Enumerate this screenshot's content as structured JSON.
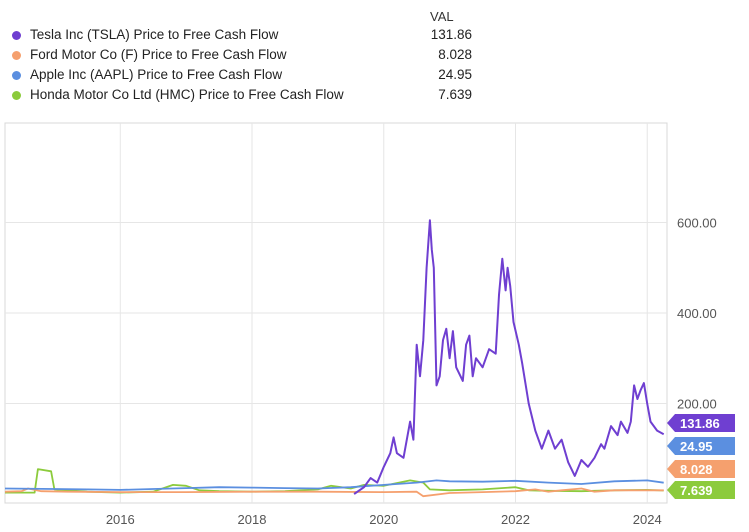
{
  "chart_data": {
    "type": "line",
    "title": "",
    "xlabel": "",
    "ylabel": "",
    "legend_header": "VAL",
    "x_ticks": [
      "2016",
      "2018",
      "2020",
      "2022",
      "2024"
    ],
    "y_ticks": [
      "200.00",
      "400.00",
      "600.00"
    ],
    "xlim": [
      2014.25,
      2024.3
    ],
    "ylim": [
      -20,
      820
    ],
    "grid": true,
    "series": [
      {
        "name": "Tesla Inc (TSLA) Price to Free Cash Flow",
        "value_label": "131.86",
        "color": "#6f3fd1",
        "points": [
          [
            2019.55,
            0
          ],
          [
            2019.7,
            15
          ],
          [
            2019.8,
            35
          ],
          [
            2019.9,
            25
          ],
          [
            2020.0,
            60
          ],
          [
            2020.1,
            90
          ],
          [
            2020.15,
            125
          ],
          [
            2020.2,
            90
          ],
          [
            2020.3,
            80
          ],
          [
            2020.4,
            160
          ],
          [
            2020.45,
            120
          ],
          [
            2020.5,
            330
          ],
          [
            2020.55,
            260
          ],
          [
            2020.6,
            340
          ],
          [
            2020.65,
            500
          ],
          [
            2020.7,
            605
          ],
          [
            2020.73,
            540
          ],
          [
            2020.76,
            500
          ],
          [
            2020.8,
            240
          ],
          [
            2020.85,
            260
          ],
          [
            2020.9,
            340
          ],
          [
            2020.95,
            365
          ],
          [
            2021.0,
            300
          ],
          [
            2021.05,
            360
          ],
          [
            2021.1,
            280
          ],
          [
            2021.2,
            250
          ],
          [
            2021.25,
            330
          ],
          [
            2021.3,
            350
          ],
          [
            2021.35,
            260
          ],
          [
            2021.4,
            300
          ],
          [
            2021.5,
            280
          ],
          [
            2021.6,
            320
          ],
          [
            2021.7,
            310
          ],
          [
            2021.75,
            440
          ],
          [
            2021.8,
            520
          ],
          [
            2021.85,
            450
          ],
          [
            2021.88,
            500
          ],
          [
            2021.92,
            460
          ],
          [
            2021.97,
            380
          ],
          [
            2022.05,
            330
          ],
          [
            2022.1,
            290
          ],
          [
            2022.2,
            200
          ],
          [
            2022.3,
            140
          ],
          [
            2022.4,
            100
          ],
          [
            2022.5,
            140
          ],
          [
            2022.6,
            100
          ],
          [
            2022.7,
            120
          ],
          [
            2022.8,
            70
          ],
          [
            2022.9,
            40
          ],
          [
            2023.0,
            75
          ],
          [
            2023.1,
            60
          ],
          [
            2023.2,
            80
          ],
          [
            2023.3,
            110
          ],
          [
            2023.35,
            100
          ],
          [
            2023.45,
            150
          ],
          [
            2023.55,
            130
          ],
          [
            2023.6,
            160
          ],
          [
            2023.7,
            135
          ],
          [
            2023.75,
            160
          ],
          [
            2023.8,
            240
          ],
          [
            2023.85,
            210
          ],
          [
            2023.9,
            230
          ],
          [
            2023.95,
            245
          ],
          [
            2024.0,
            200
          ],
          [
            2024.05,
            160
          ],
          [
            2024.15,
            140
          ],
          [
            2024.25,
            131.86
          ]
        ]
      },
      {
        "name": "Ford Motor Co (F) Price to Free Cash Flow",
        "value_label": "8.028",
        "color": "#f5a06e",
        "points": [
          [
            2014.25,
            5
          ],
          [
            2014.5,
            6
          ],
          [
            2014.6,
            12
          ],
          [
            2014.8,
            6
          ],
          [
            2015.2,
            5
          ],
          [
            2016.0,
            4
          ],
          [
            2017.0,
            4
          ],
          [
            2018.0,
            5
          ],
          [
            2019.0,
            5
          ],
          [
            2020.0,
            4
          ],
          [
            2020.5,
            5
          ],
          [
            2020.6,
            -5
          ],
          [
            2021.0,
            2
          ],
          [
            2021.5,
            4
          ],
          [
            2022.0,
            6
          ],
          [
            2022.3,
            10
          ],
          [
            2022.5,
            5
          ],
          [
            2022.7,
            8
          ],
          [
            2023.0,
            12
          ],
          [
            2023.2,
            5
          ],
          [
            2023.5,
            8
          ],
          [
            2024.0,
            8
          ],
          [
            2024.25,
            8.028
          ]
        ]
      },
      {
        "name": "Apple Inc (AAPL) Price to Free Cash Flow",
        "value_label": "24.95",
        "color": "#5b8fe0",
        "points": [
          [
            2014.25,
            12
          ],
          [
            2015.0,
            11
          ],
          [
            2015.5,
            10
          ],
          [
            2016.0,
            9
          ],
          [
            2016.5,
            11
          ],
          [
            2017.0,
            13
          ],
          [
            2017.5,
            15
          ],
          [
            2018.0,
            14
          ],
          [
            2018.5,
            13
          ],
          [
            2019.0,
            12
          ],
          [
            2019.5,
            15
          ],
          [
            2020.0,
            20
          ],
          [
            2020.5,
            25
          ],
          [
            2020.8,
            30
          ],
          [
            2021.0,
            28
          ],
          [
            2021.5,
            27
          ],
          [
            2022.0,
            29
          ],
          [
            2022.5,
            25
          ],
          [
            2023.0,
            22
          ],
          [
            2023.5,
            28
          ],
          [
            2024.0,
            30
          ],
          [
            2024.25,
            24.95
          ]
        ]
      },
      {
        "name": "Honda Motor Co Ltd (HMC) Price to Free Cash Flow",
        "value_label": "7.639",
        "color": "#8ccb3c",
        "points": [
          [
            2014.25,
            3
          ],
          [
            2014.7,
            3
          ],
          [
            2014.75,
            55
          ],
          [
            2014.95,
            50
          ],
          [
            2015.0,
            10
          ],
          [
            2015.5,
            5
          ],
          [
            2016.0,
            3
          ],
          [
            2016.5,
            5
          ],
          [
            2016.8,
            20
          ],
          [
            2017.0,
            18
          ],
          [
            2017.2,
            8
          ],
          [
            2017.5,
            6
          ],
          [
            2018.0,
            5
          ],
          [
            2018.5,
            6
          ],
          [
            2019.0,
            10
          ],
          [
            2019.2,
            18
          ],
          [
            2019.5,
            12
          ],
          [
            2019.7,
            20
          ],
          [
            2020.0,
            18
          ],
          [
            2020.4,
            30
          ],
          [
            2020.6,
            25
          ],
          [
            2020.7,
            10
          ],
          [
            2021.0,
            8
          ],
          [
            2021.5,
            10
          ],
          [
            2022.0,
            15
          ],
          [
            2022.2,
            8
          ],
          [
            2022.5,
            7
          ],
          [
            2023.0,
            6
          ],
          [
            2023.5,
            8
          ],
          [
            2024.0,
            9
          ],
          [
            2024.25,
            7.639
          ]
        ]
      }
    ]
  }
}
